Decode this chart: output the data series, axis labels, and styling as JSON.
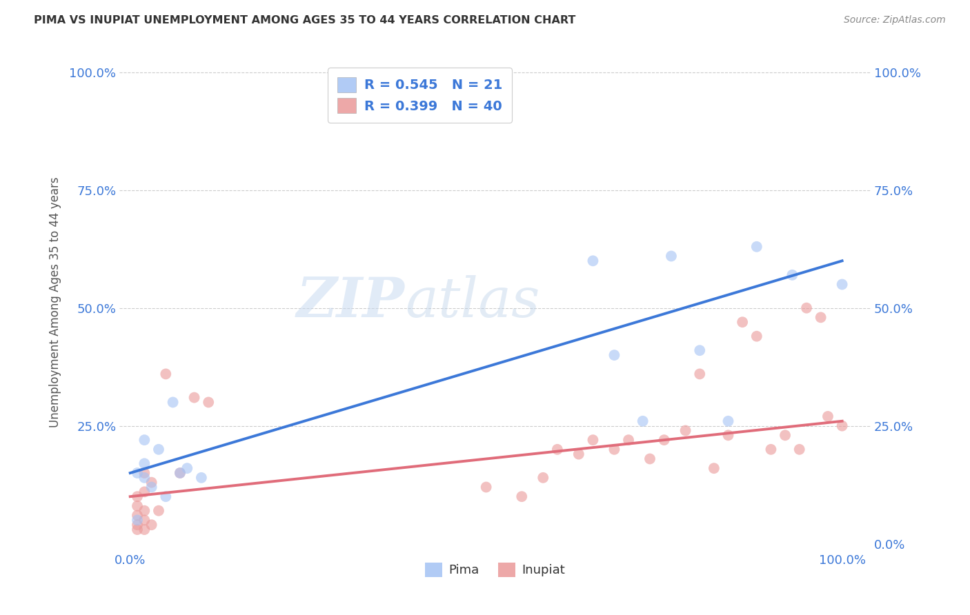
{
  "title": "PIMA VS INUPIAT UNEMPLOYMENT AMONG AGES 35 TO 44 YEARS CORRELATION CHART",
  "source": "Source: ZipAtlas.com",
  "ylabel": "Unemployment Among Ages 35 to 44 years",
  "watermark_ZIP": "ZIP",
  "watermark_atlas": "atlas",
  "pima_R": 0.545,
  "pima_N": 21,
  "inupiat_R": 0.399,
  "inupiat_N": 40,
  "pima_color": "#a4c2f4",
  "inupiat_color": "#ea9999",
  "pima_line_color": "#3c78d8",
  "inupiat_line_color": "#e06c7a",
  "pima_x": [
    0.01,
    0.01,
    0.02,
    0.02,
    0.02,
    0.03,
    0.04,
    0.05,
    0.06,
    0.07,
    0.08,
    0.1,
    0.65,
    0.68,
    0.72,
    0.76,
    0.8,
    0.84,
    0.88,
    0.93,
    1.0
  ],
  "pima_y": [
    0.05,
    0.15,
    0.17,
    0.14,
    0.22,
    0.12,
    0.2,
    0.1,
    0.3,
    0.15,
    0.16,
    0.14,
    0.6,
    0.4,
    0.26,
    0.61,
    0.41,
    0.26,
    0.63,
    0.57,
    0.55
  ],
  "inupiat_x": [
    0.01,
    0.01,
    0.01,
    0.01,
    0.01,
    0.02,
    0.02,
    0.02,
    0.02,
    0.02,
    0.03,
    0.03,
    0.04,
    0.05,
    0.07,
    0.09,
    0.11,
    0.5,
    0.55,
    0.58,
    0.6,
    0.63,
    0.65,
    0.68,
    0.7,
    0.73,
    0.75,
    0.78,
    0.8,
    0.82,
    0.84,
    0.86,
    0.88,
    0.9,
    0.92,
    0.94,
    0.95,
    0.97,
    0.98,
    1.0
  ],
  "inupiat_y": [
    0.03,
    0.04,
    0.06,
    0.08,
    0.1,
    0.03,
    0.05,
    0.07,
    0.11,
    0.15,
    0.13,
    0.04,
    0.07,
    0.36,
    0.15,
    0.31,
    0.3,
    0.12,
    0.1,
    0.14,
    0.2,
    0.19,
    0.22,
    0.2,
    0.22,
    0.18,
    0.22,
    0.24,
    0.36,
    0.16,
    0.23,
    0.47,
    0.44,
    0.2,
    0.23,
    0.2,
    0.5,
    0.48,
    0.27,
    0.25
  ],
  "pima_line_x0": 0.0,
  "pima_line_y0": 0.15,
  "pima_line_x1": 1.0,
  "pima_line_y1": 0.6,
  "inupiat_line_x0": 0.0,
  "inupiat_line_y0": 0.1,
  "inupiat_line_x1": 1.0,
  "inupiat_line_y1": 0.26,
  "xlim": [
    0.0,
    1.0
  ],
  "ylim": [
    0.0,
    1.0
  ],
  "xtick_pos": [
    0.0,
    1.0
  ],
  "xtick_labels": [
    "0.0%",
    "100.0%"
  ],
  "ytick_pos": [
    0.0,
    0.25,
    0.5,
    0.75,
    1.0
  ],
  "ytick_labels_left": [
    "",
    "25.0%",
    "50.0%",
    "75.0%",
    "100.0%"
  ],
  "ytick_labels_right": [
    "0.0%",
    "25.0%",
    "50.0%",
    "75.0%",
    "100.0%"
  ],
  "legend_label_pima": "Pima",
  "legend_label_inupiat": "Inupiat",
  "bg_color": "#ffffff",
  "marker_size": 130,
  "marker_alpha": 0.6
}
